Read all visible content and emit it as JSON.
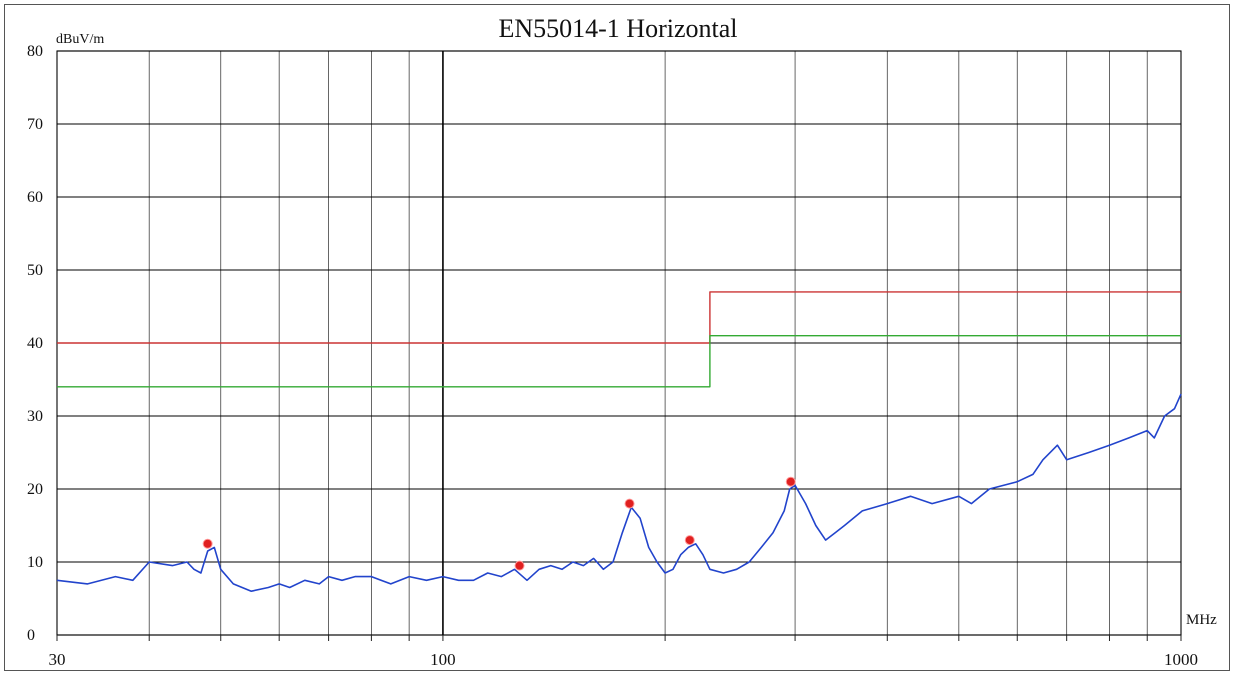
{
  "chart_data": {
    "type": "line",
    "title": "EN55014-1  Horizontal",
    "ylabel": "dBuV/m",
    "xlabel": "MHz",
    "xscale": "log",
    "xlim": [
      30,
      1000
    ],
    "ylim": [
      0,
      80
    ],
    "grid": true,
    "x_ticks": [
      30,
      40,
      50,
      60,
      70,
      80,
      90,
      100,
      200,
      300,
      400,
      500,
      600,
      700,
      800,
      900,
      1000
    ],
    "x_tick_labels": [
      {
        "value": 30,
        "label": "30"
      },
      {
        "value": 100,
        "label": "100"
      },
      {
        "value": 1000,
        "label": "1000"
      }
    ],
    "y_ticks": [
      0,
      10,
      20,
      30,
      40,
      50,
      60,
      70,
      80
    ],
    "y_tick_labels": [
      "0",
      "10",
      "20",
      "30",
      "40",
      "50",
      "60",
      "70",
      "80"
    ],
    "colors": {
      "grid": "#000000",
      "limit_red": "#cc3333",
      "limit_green": "#33aa33",
      "trace": "#2244cc",
      "markers": "#e02020"
    },
    "series": [
      {
        "color": "red",
        "x": [
          30,
          230,
          230,
          1000
        ],
        "y": [
          40,
          40,
          47,
          47
        ]
      },
      {
        "color": "green",
        "x": [
          30,
          230,
          230,
          1000
        ],
        "y": [
          34,
          34,
          41,
          41
        ]
      },
      {
        "color": "blue",
        "x": [
          30,
          33,
          36,
          38,
          40,
          43,
          45,
          46,
          47,
          48,
          49,
          50,
          52,
          55,
          58,
          60,
          62,
          65,
          68,
          70,
          73,
          76,
          80,
          85,
          90,
          95,
          100,
          105,
          110,
          115,
          120,
          125,
          130,
          135,
          140,
          145,
          150,
          155,
          160,
          165,
          170,
          175,
          180,
          185,
          190,
          195,
          200,
          205,
          210,
          215,
          220,
          225,
          230,
          240,
          250,
          260,
          270,
          280,
          290,
          295,
          300,
          310,
          320,
          330,
          340,
          350,
          370,
          400,
          430,
          460,
          500,
          520,
          550,
          600,
          630,
          650,
          680,
          700,
          750,
          800,
          850,
          900,
          920,
          950,
          980,
          1000
        ],
        "y": [
          7.5,
          7,
          8,
          7.5,
          10,
          9.5,
          10,
          9,
          8.5,
          11.5,
          12,
          9,
          7,
          6,
          6.5,
          7,
          6.5,
          7.5,
          7,
          8,
          7.5,
          8,
          8,
          7,
          8,
          7.5,
          8,
          7.5,
          7.5,
          8.5,
          8,
          9,
          7.5,
          9,
          9.5,
          9,
          10,
          9.5,
          10.5,
          9,
          10,
          14,
          17.5,
          16,
          12,
          10,
          8.5,
          9,
          11,
          12,
          12.5,
          11,
          9,
          8.5,
          9,
          10,
          12,
          14,
          17,
          20,
          20.5,
          18,
          15,
          13,
          14,
          15,
          17,
          18,
          19,
          18,
          19,
          18,
          20,
          21,
          22,
          24,
          26,
          24,
          25,
          26,
          27,
          28,
          27,
          30,
          31,
          33
        ]
      }
    ],
    "markers": {
      "x": [
        48,
        127,
        179,
        216,
        296
      ],
      "y": [
        12.5,
        9.5,
        18,
        13,
        21
      ]
    }
  }
}
